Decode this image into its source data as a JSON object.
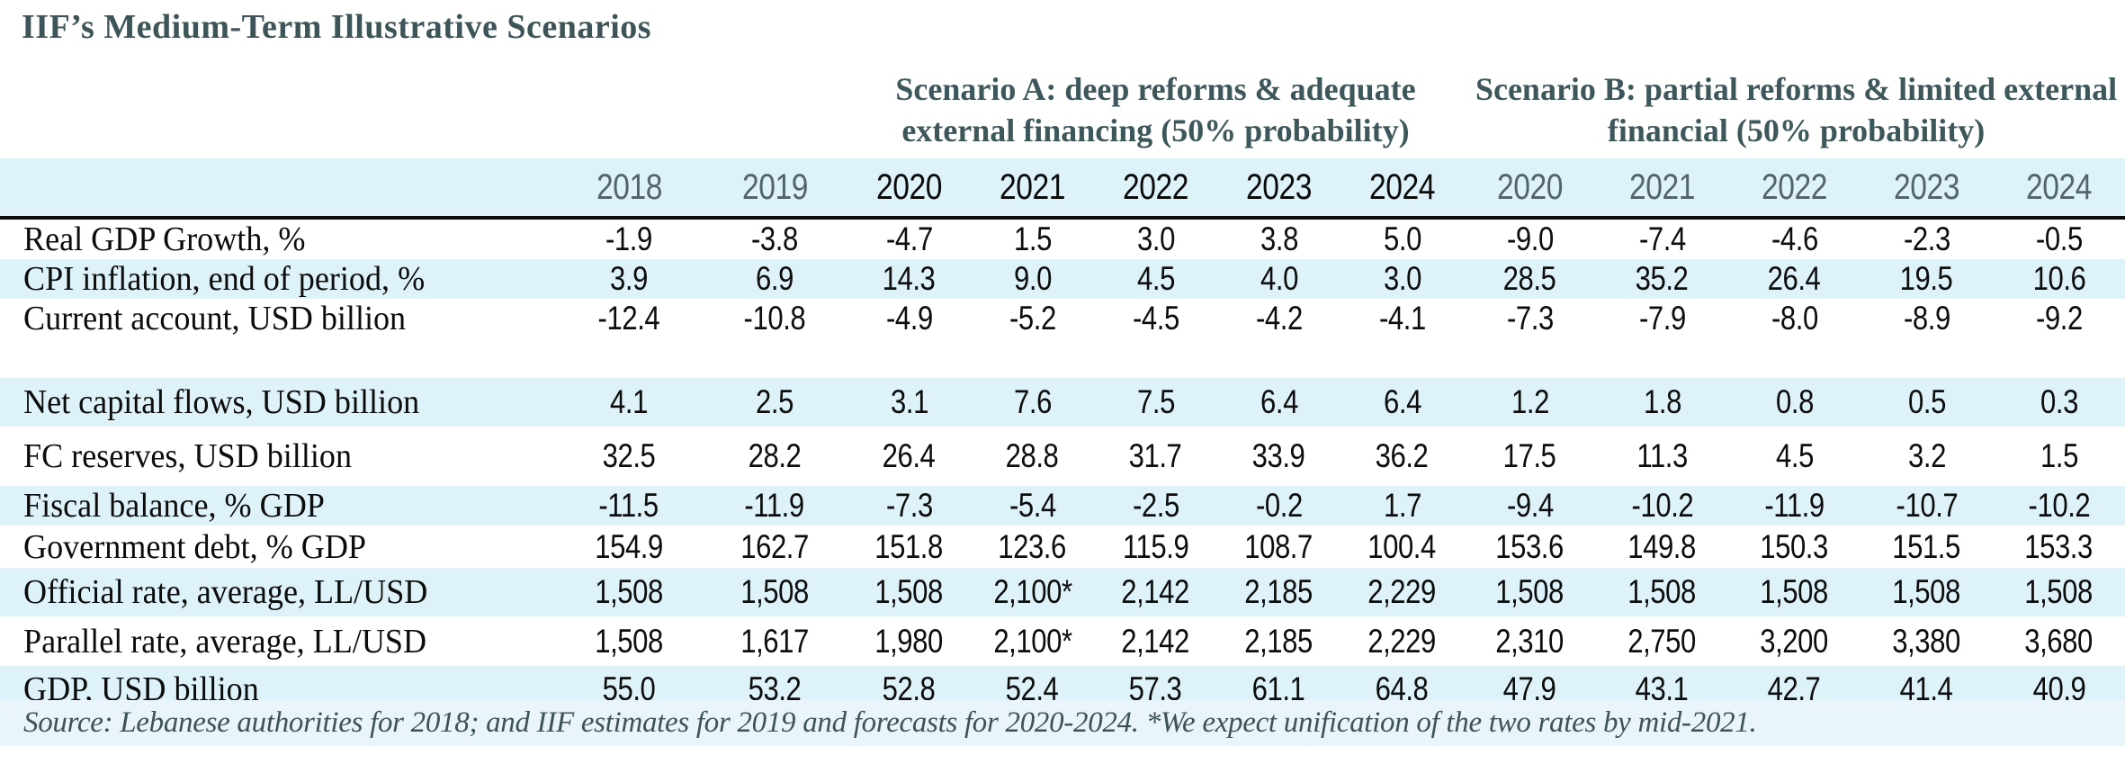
{
  "chart_data": {
    "type": "table",
    "title": "IIF’s Medium-Term Illustrative Scenarios",
    "scenario_a_header": "Scenario A: deep reforms & adequate external financing (50% probability)",
    "scenario_b_header": "Scenario B: partial reforms & limited external financial (50% probability)",
    "column_groups": [
      "actual",
      "actual",
      "scenario_a",
      "scenario_a",
      "scenario_a",
      "scenario_a",
      "scenario_a",
      "scenario_b",
      "scenario_b",
      "scenario_b",
      "scenario_b",
      "scenario_b"
    ],
    "columns": [
      "2018",
      "2019",
      "2020",
      "2021",
      "2022",
      "2023",
      "2024",
      "2020",
      "2021",
      "2022",
      "2023",
      "2024"
    ],
    "rows": [
      {
        "label": "Real GDP Growth, %",
        "values": [
          "-1.9",
          "-3.8",
          "-4.7",
          "1.5",
          "3.0",
          "3.8",
          "5.0",
          "-9.0",
          "-7.4",
          "-4.6",
          "-2.3",
          "-0.5"
        ]
      },
      {
        "label": "CPI inflation, end of period, %",
        "values": [
          "3.9",
          "6.9",
          "14.3",
          "9.0",
          "4.5",
          "4.0",
          "3.0",
          "28.5",
          "35.2",
          "26.4",
          "19.5",
          "10.6"
        ]
      },
      {
        "label": "Current account, USD billion",
        "values": [
          "-12.4",
          "-10.8",
          "-4.9",
          "-5.2",
          "-4.5",
          "-4.2",
          "-4.1",
          "-7.3",
          "-7.9",
          "-8.0",
          "-8.9",
          "-9.2"
        ]
      },
      {
        "label": "Net capital flows, USD billion",
        "values": [
          "4.1",
          "2.5",
          "3.1",
          "7.6",
          "7.5",
          "6.4",
          "6.4",
          "1.2",
          "1.8",
          "0.8",
          "0.5",
          "0.3"
        ]
      },
      {
        "label": "FC reserves, USD billion",
        "values": [
          "32.5",
          "28.2",
          "26.4",
          "28.8",
          "31.7",
          "33.9",
          "36.2",
          "17.5",
          "11.3",
          "4.5",
          "3.2",
          "1.5"
        ]
      },
      {
        "label": "Fiscal balance, % GDP",
        "values": [
          "-11.5",
          "-11.9",
          "-7.3",
          "-5.4",
          "-2.5",
          "-0.2",
          "1.7",
          "-9.4",
          "-10.2",
          "-11.9",
          "-10.7",
          "-10.2"
        ]
      },
      {
        "label": "Government debt, % GDP",
        "values": [
          "154.9",
          "162.7",
          "151.8",
          "123.6",
          "115.9",
          "108.7",
          "100.4",
          "153.6",
          "149.8",
          "150.3",
          "151.5",
          "153.3"
        ]
      },
      {
        "label": "Official rate, average, LL/USD",
        "values": [
          "1,508",
          "1,508",
          "1,508",
          "2,100*",
          "2,142",
          "2,185",
          "2,229",
          "1,508",
          "1,508",
          "1,508",
          "1,508",
          "1,508"
        ]
      },
      {
        "label": "Parallel rate, average, LL/USD",
        "values": [
          "1,508",
          "1,617",
          "1,980",
          "2,100*",
          "2,142",
          "2,185",
          "2,229",
          "2,310",
          "2,750",
          "3,200",
          "3,380",
          "3,680"
        ]
      },
      {
        "label": "GDP, USD billion",
        "values": [
          "55.0",
          "53.2",
          "52.8",
          "52.4",
          "57.3",
          "61.1",
          "64.8",
          "47.9",
          "43.1",
          "42.7",
          "41.4",
          "40.9"
        ]
      }
    ],
    "source_note": "Source: Lebanese authorities for 2018; and IIF estimates for 2019 and forecasts for 2020-2024. *We expect unification of the two rates by mid-2021.",
    "layout_hints": {
      "stripe_color": "#def2f9",
      "source_strip_color": "#e9f5fa",
      "heading_text_color": "#3d575b",
      "actual_year_text_color": "#52646c",
      "scenario_a_year_text_color": "#0b0b0b",
      "scenario_b_year_text_color": "#52646c",
      "rule_color": "#0a0a0a",
      "grid": "horizontal rules under year header and above source note only"
    }
  }
}
